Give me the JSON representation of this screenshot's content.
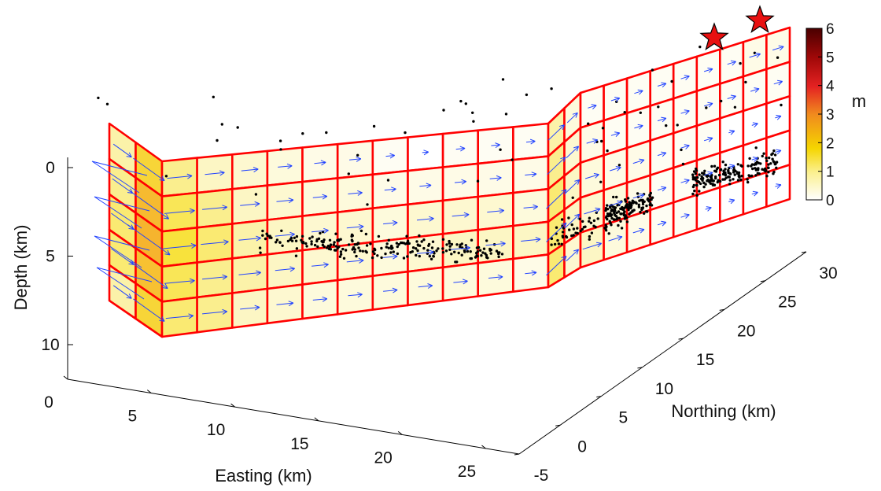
{
  "chart_data": {
    "type": "3d-fault-slip",
    "axes": {
      "depth": {
        "label": "Depth (km)",
        "ticks": [
          "0",
          "5",
          "10"
        ],
        "range": [
          0,
          12
        ],
        "reversed": true
      },
      "easting": {
        "label": "Easting (km)",
        "ticks": [
          "0",
          "5",
          "10",
          "15",
          "20",
          "25"
        ],
        "range": [
          0,
          27
        ]
      },
      "northing": {
        "label": "Northing (km)",
        "ticks": [
          "-5",
          "0",
          "5",
          "10",
          "15",
          "20",
          "25",
          "30"
        ],
        "range": [
          -5,
          30
        ]
      }
    },
    "colorbar": {
      "unit": "m",
      "ticks": [
        "0",
        "1",
        "2",
        "3",
        "4",
        "5",
        "6"
      ],
      "range": [
        0,
        6
      ],
      "colormap": [
        "#ffffff",
        "#f7e000",
        "#f08020",
        "#e02020",
        "#6a0000"
      ]
    },
    "fault_patch_edge_color": "#ff0000",
    "slip_vector_color": "#2244ff",
    "aftershock_colors": [
      "#000000",
      "#aaaaaa",
      "#b0ad95"
    ],
    "epicenter_color": "#e81010",
    "segments": [
      {
        "name": "segment-1",
        "cols": 2,
        "rows": 5,
        "slip": [
          [
            0.6,
            1.2
          ],
          [
            0.7,
            1.6
          ],
          [
            0.8,
            1.7
          ],
          [
            0.8,
            1.5
          ],
          [
            0.6,
            1.2
          ]
        ]
      },
      {
        "name": "segment-2",
        "cols": 11,
        "rows": 5,
        "slip": [
          [
            0.7,
            0.5,
            0.4,
            0.3,
            0.2,
            0.2,
            0.1,
            0.0,
            0.1,
            0.1,
            0.1
          ],
          [
            0.9,
            0.7,
            0.5,
            0.4,
            0.3,
            0.3,
            0.2,
            0.2,
            0.2,
            0.2,
            0.2
          ],
          [
            1.0,
            0.8,
            0.6,
            0.5,
            0.4,
            0.4,
            0.3,
            0.4,
            0.4,
            0.4,
            0.3
          ],
          [
            0.9,
            0.7,
            0.6,
            0.5,
            0.4,
            0.4,
            0.3,
            0.4,
            0.5,
            0.5,
            0.5
          ],
          [
            0.8,
            0.7,
            0.5,
            0.4,
            0.3,
            0.3,
            0.3,
            0.3,
            0.3,
            0.3,
            0.2
          ]
        ]
      },
      {
        "name": "segment-3",
        "cols": 2,
        "rows": 5,
        "slip": [
          [
            0.6,
            0.3
          ],
          [
            0.7,
            0.4
          ],
          [
            0.8,
            0.5
          ],
          [
            0.8,
            0.5
          ],
          [
            0.8,
            0.4
          ]
        ]
      },
      {
        "name": "segment-4",
        "cols": 9,
        "rows": 5,
        "slip": [
          [
            0.1,
            0.1,
            0.1,
            0.1,
            0.1,
            0.1,
            0.1,
            0.2,
            0.2
          ],
          [
            0.2,
            0.1,
            0.1,
            0.1,
            0.1,
            0.1,
            0.1,
            0.1,
            0.1
          ],
          [
            0.3,
            0.2,
            0.2,
            0.1,
            0.1,
            0.1,
            0.0,
            0.0,
            0.0
          ],
          [
            0.4,
            0.3,
            0.2,
            0.1,
            0.1,
            0.1,
            0.0,
            0.0,
            0.0
          ],
          [
            0.5,
            0.3,
            0.2,
            0.1,
            0.1,
            0.0,
            0.0,
            0.0,
            0.0
          ]
        ]
      }
    ],
    "epicenters": 2
  }
}
